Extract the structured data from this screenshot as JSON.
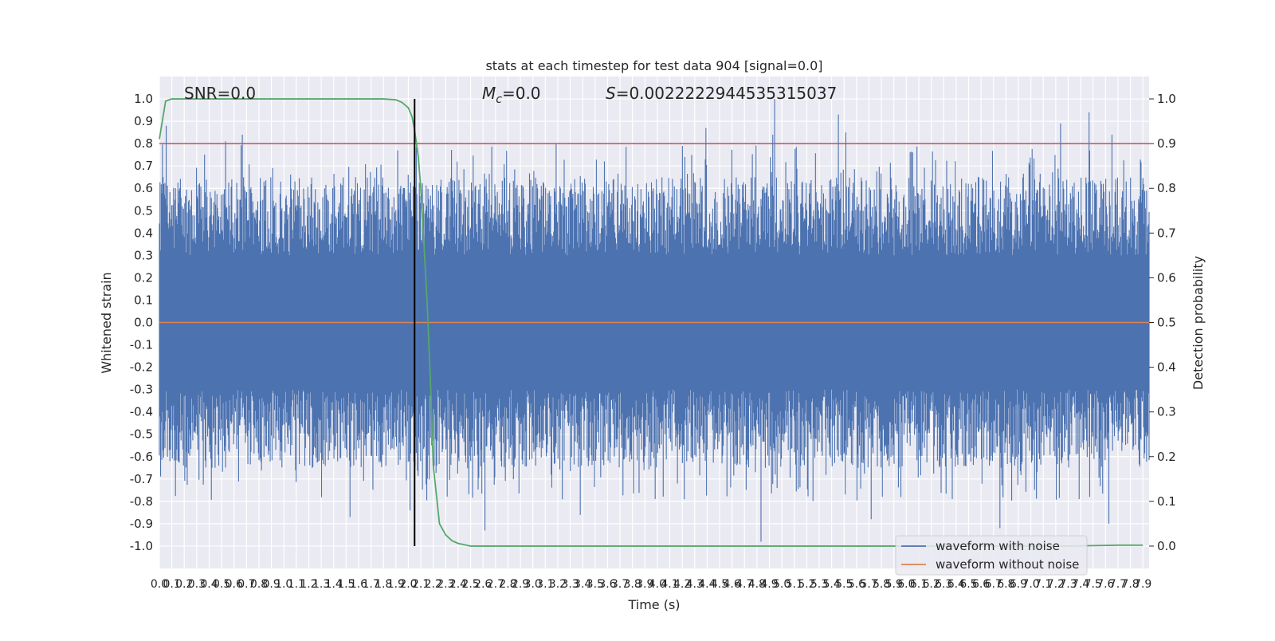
{
  "chart_data": {
    "type": "line",
    "title": "stats at each timestep for test data 904 [signal=0.0]",
    "xlabel": "Time (s)",
    "ylabel": "Whitened strain",
    "y2label": "Detection probability",
    "xlim": [
      0.0,
      7.95
    ],
    "ylim": [
      -1.1,
      1.1
    ],
    "y2lim": [
      -0.05,
      1.05
    ],
    "x_ticks": [
      "0.0",
      "0.1",
      "0.2",
      "0.3",
      "0.4",
      "0.5",
      "0.6",
      "0.7",
      "0.8",
      "0.9",
      "1.0",
      "1.1",
      "1.2",
      "1.3",
      "1.4",
      "1.5",
      "1.6",
      "1.7",
      "1.8",
      "1.9",
      "2.0",
      "2.1",
      "2.2",
      "2.3",
      "2.4",
      "2.5",
      "2.6",
      "2.7",
      "2.8",
      "2.9",
      "3.0",
      "3.1",
      "3.2",
      "3.3",
      "3.4",
      "3.5",
      "3.6",
      "3.7",
      "3.8",
      "3.9",
      "4.0",
      "4.1",
      "4.2",
      "4.3",
      "4.4",
      "4.5",
      "4.6",
      "4.7",
      "4.8",
      "4.9",
      "5.0",
      "5.1",
      "5.2",
      "5.3",
      "5.4",
      "5.5",
      "5.6",
      "5.7",
      "5.8",
      "5.9",
      "6.0",
      "6.1",
      "6.2",
      "6.3",
      "6.4",
      "6.5",
      "6.6",
      "6.7",
      "6.8",
      "6.9",
      "7.0",
      "7.1",
      "7.2",
      "7.3",
      "7.4",
      "7.5",
      "7.6",
      "7.7",
      "7.8",
      "7.9"
    ],
    "y_ticks": [
      "1.0",
      "0.9",
      "0.8",
      "0.7",
      "0.6",
      "0.5",
      "0.4",
      "0.3",
      "0.2",
      "0.1",
      "0.0",
      "-0.1",
      "-0.2",
      "-0.3",
      "-0.4",
      "-0.5",
      "-0.6",
      "-0.7",
      "-0.8",
      "-0.9",
      "-1.0"
    ],
    "y2_ticks": [
      "1.0",
      "0.9",
      "0.8",
      "0.7",
      "0.6",
      "0.5",
      "0.4",
      "0.3",
      "0.2",
      "0.1",
      "0.0"
    ],
    "grid": true,
    "legend_position": "lower-right",
    "annotations": {
      "snr": "SNR=0.0",
      "mc_prefix": "M",
      "mc_sub": "c",
      "mc_value": "=0.0",
      "s_prefix": "S",
      "s_value": "=0.0022222944535315037"
    },
    "threshold": {
      "axis": "y2",
      "value": 0.9,
      "color": "#c44e52"
    },
    "vline": {
      "x": 2.05,
      "color": "#000000"
    },
    "noise_envelope": {
      "x_start": 0.0,
      "x_end": 7.95,
      "samples": 1600,
      "typical_peak_min": 0.3,
      "typical_peak_max": 0.65,
      "extreme_peaks": [
        0.88,
        0.81,
        0.84,
        0.79,
        0.87,
        0.84,
        1.0,
        0.93,
        0.85,
        0.89,
        0.94,
        0.84
      ],
      "extreme_troughs": [
        -0.87,
        -0.84,
        -0.93,
        -0.86,
        -0.98,
        -0.88,
        -0.92,
        -0.9
      ]
    },
    "series": [
      {
        "name": "waveform with noise",
        "color": "#4c72b0",
        "axis": "y"
      },
      {
        "name": "waveform without noise",
        "color": "#dd8452",
        "axis": "y",
        "x": [
          0.0,
          7.95
        ],
        "y": [
          0.0,
          0.0
        ]
      },
      {
        "color": "#55a868",
        "axis": "y2",
        "x": [
          0.0,
          0.05,
          0.1,
          0.2,
          0.3,
          0.5,
          1.0,
          1.5,
          1.8,
          1.9,
          1.95,
          2.0,
          2.03,
          2.05,
          2.08,
          2.1,
          2.12,
          2.15,
          2.18,
          2.2,
          2.25,
          2.3,
          2.35,
          2.4,
          2.45,
          2.5,
          2.6,
          3.0,
          4.0,
          5.0,
          6.0,
          7.0,
          7.3,
          7.5,
          7.7,
          7.8,
          7.9
        ],
        "y": [
          0.91,
          0.995,
          1.0,
          1.0,
          1.0,
          1.0,
          1.0,
          1.0,
          1.0,
          0.998,
          0.992,
          0.98,
          0.96,
          0.93,
          0.87,
          0.8,
          0.7,
          0.55,
          0.35,
          0.18,
          0.05,
          0.025,
          0.012,
          0.006,
          0.003,
          0.0,
          0.0,
          0.0,
          0.0,
          0.0,
          0.0,
          0.0,
          0.0,
          0.001,
          0.002,
          0.002,
          0.002
        ]
      }
    ]
  }
}
